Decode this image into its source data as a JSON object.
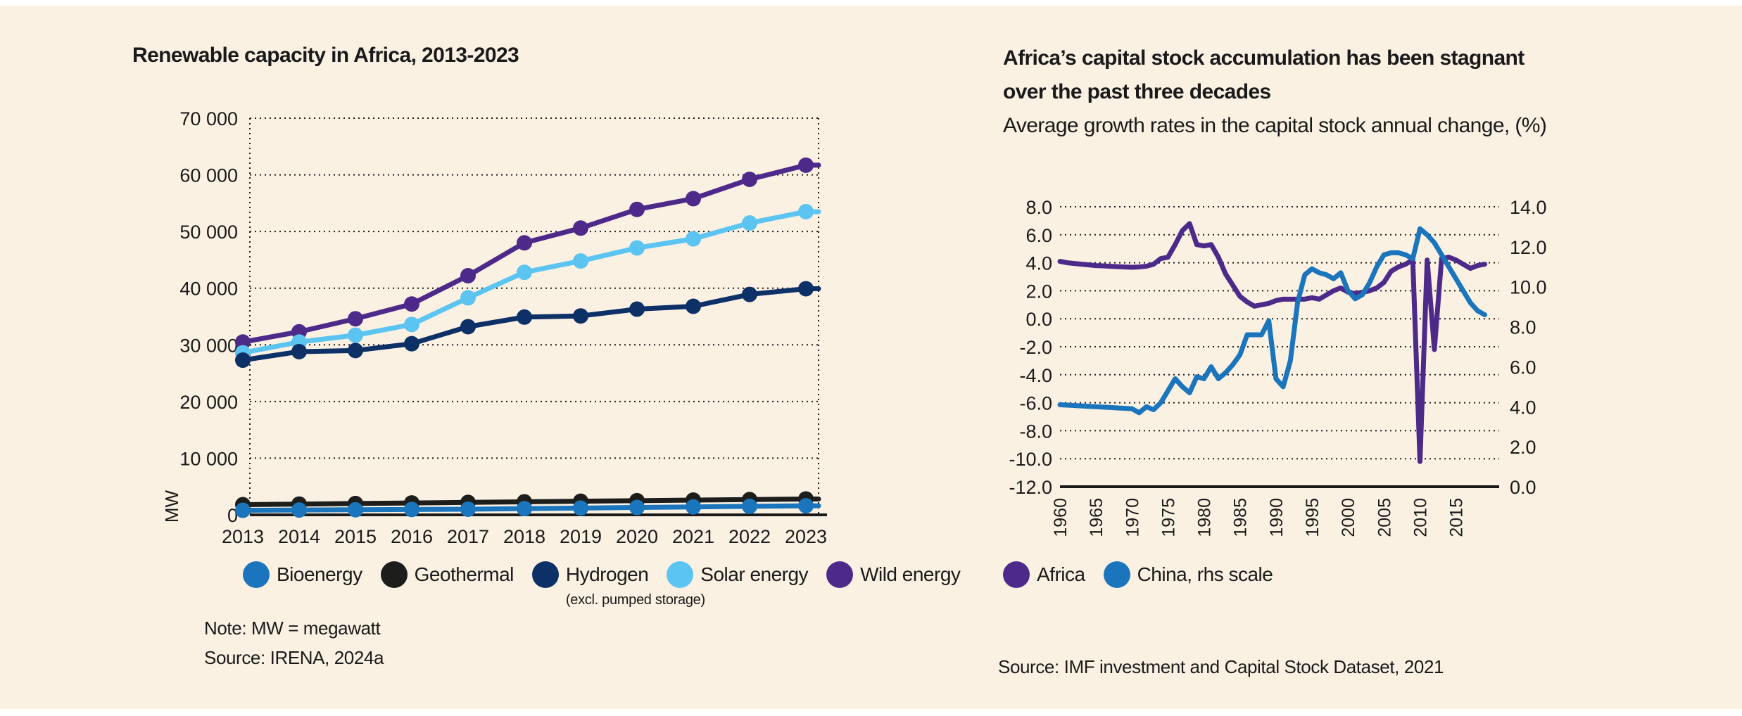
{
  "left_chart": {
    "title": "Renewable capacity in Africa, 2013-2023",
    "note": "Note: MW = megawatt",
    "source": "Source: IRENA, 2024a",
    "legend": [
      {
        "label": "Bioenergy",
        "color": "#1b75bc",
        "sublabel": ""
      },
      {
        "label": "Geothermal",
        "color": "#1d1d1b",
        "sublabel": ""
      },
      {
        "label": "Hydrogen",
        "color": "#0d3066",
        "sublabel": "(excl. pumped storage)"
      },
      {
        "label": "Solar energy",
        "color": "#5bc4f1",
        "sublabel": ""
      },
      {
        "label": "Wild energy",
        "color": "#4d2a8a",
        "sublabel": ""
      }
    ]
  },
  "right_chart": {
    "title_line1": "Africa’s capital stock accumulation has been stagnant",
    "title_line2": "over the past three decades",
    "subtitle": "Average growth rates in the capital stock annual change, (%)",
    "source": "Source: IMF investment and Capital Stock Dataset, 2021",
    "legend": [
      {
        "label": "Africa",
        "color": "#4d2a8a"
      },
      {
        "label": "China, rhs scale",
        "color": "#1b75bc"
      }
    ]
  },
  "chart_data": [
    {
      "type": "line",
      "title": "Renewable capacity in Africa, 2013-2023",
      "xlabel": "",
      "ylabel": "MW",
      "ylim": [
        0,
        70000
      ],
      "yticks": [
        0,
        10000,
        20000,
        30000,
        40000,
        50000,
        60000,
        70000
      ],
      "ytick_labels": [
        "0",
        "10 000",
        "20 000",
        "30 000",
        "40 000",
        "50 000",
        "60 000",
        "70 000"
      ],
      "x": [
        2013,
        2014,
        2015,
        2016,
        2017,
        2018,
        2019,
        2020,
        2021,
        2022,
        2023
      ],
      "grid": true,
      "series": [
        {
          "name": "Wild energy",
          "color": "#4d2a8a",
          "values": [
            30500,
            32300,
            34600,
            37200,
            42200,
            48000,
            50600,
            53900,
            55800,
            59200,
            61700
          ]
        },
        {
          "name": "Solar energy",
          "color": "#5bc4f1",
          "values": [
            28600,
            30500,
            31700,
            33600,
            38300,
            42800,
            44800,
            47100,
            48700,
            51500,
            53500
          ]
        },
        {
          "name": "Hydrogen",
          "color": "#0d3066",
          "values": [
            27300,
            28800,
            29000,
            30200,
            33200,
            34900,
            35100,
            36300,
            36800,
            38900,
            39900
          ]
        },
        {
          "name": "Geothermal",
          "color": "#1d1d1b",
          "values": [
            1800,
            1900,
            2000,
            2100,
            2200,
            2300,
            2400,
            2500,
            2600,
            2700,
            2800
          ]
        },
        {
          "name": "Bioenergy",
          "color": "#1b75bc",
          "values": [
            800,
            850,
            900,
            950,
            1000,
            1100,
            1200,
            1300,
            1400,
            1500,
            1600
          ]
        }
      ]
    },
    {
      "type": "line",
      "title": "Africa’s capital stock accumulation has been stagnant over the past three decades",
      "subtitle": "Average growth rates in the capital stock annual change, (%)",
      "ylim": [
        -12,
        8
      ],
      "yticks": [
        -12,
        -10,
        -8,
        -6,
        -4,
        -2,
        0,
        2,
        4,
        6,
        8
      ],
      "ytick_labels": [
        "-12.0",
        "-10.0",
        "-8.0",
        "-6.0",
        "-4.0",
        "-2.0",
        "0.0",
        "2.0",
        "4.0",
        "6.0",
        "8.0"
      ],
      "y2lim": [
        0,
        14
      ],
      "y2ticks": [
        0,
        2,
        4,
        6,
        8,
        10,
        12,
        14
      ],
      "y2tick_labels": [
        "0.0",
        "2.0",
        "4.0",
        "6.0",
        "8.0",
        "10.0",
        "12.0",
        "14.0"
      ],
      "xticks": [
        1960,
        1965,
        1970,
        1975,
        1980,
        1985,
        1990,
        1995,
        2000,
        2005,
        2010,
        2015
      ],
      "grid": true,
      "series": [
        {
          "name": "Africa",
          "axis": "left",
          "color": "#4d2a8a",
          "x": [
            1960,
            1961,
            1962,
            1963,
            1964,
            1965,
            1966,
            1967,
            1968,
            1969,
            1970,
            1971,
            1972,
            1973,
            1974,
            1975,
            1976,
            1977,
            1978,
            1979,
            1980,
            1981,
            1982,
            1983,
            1984,
            1985,
            1986,
            1987,
            1988,
            1989,
            1990,
            1991,
            1992,
            1993,
            1994,
            1995,
            1996,
            1997,
            1998,
            1999,
            2000,
            2001,
            2002,
            2003,
            2004,
            2005,
            2006,
            2007,
            2008,
            2009,
            2010,
            2011,
            2012,
            2013,
            2014,
            2015,
            2016,
            2017,
            2018,
            2019
          ],
          "values": [
            4.1,
            4.0,
            3.95,
            3.9,
            3.85,
            3.8,
            3.78,
            3.75,
            3.72,
            3.7,
            3.68,
            3.7,
            3.75,
            3.9,
            4.3,
            4.4,
            5.3,
            6.3,
            6.8,
            5.3,
            5.2,
            5.3,
            4.4,
            3.2,
            2.4,
            1.6,
            1.2,
            0.9,
            1.0,
            1.1,
            1.3,
            1.4,
            1.4,
            1.4,
            1.4,
            1.5,
            1.4,
            1.7,
            2.0,
            2.2,
            1.9,
            1.8,
            1.9,
            2.0,
            2.2,
            2.6,
            3.4,
            3.7,
            3.9,
            4.2,
            -10.2,
            4.2,
            -2.2,
            4.3,
            4.4,
            4.2,
            3.9,
            3.6,
            3.8,
            3.9
          ]
        },
        {
          "name": "China, rhs scale",
          "axis": "right",
          "color": "#1b75bc",
          "x": [
            1960,
            1961,
            1962,
            1963,
            1964,
            1965,
            1966,
            1967,
            1968,
            1969,
            1970,
            1971,
            1972,
            1973,
            1974,
            1975,
            1976,
            1977,
            1978,
            1979,
            1980,
            1981,
            1982,
            1983,
            1984,
            1985,
            1986,
            1987,
            1988,
            1989,
            1990,
            1991,
            1992,
            1993,
            1994,
            1995,
            1996,
            1997,
            1998,
            1999,
            2000,
            2001,
            2002,
            2003,
            2004,
            2005,
            2006,
            2007,
            2008,
            2009,
            2010,
            2011,
            2012,
            2013,
            2014,
            2015,
            2016,
            2017,
            2018,
            2019
          ],
          "values": [
            4.1,
            4.08,
            4.06,
            4.04,
            4.02,
            4.0,
            3.98,
            3.96,
            3.94,
            3.92,
            3.9,
            3.7,
            4.0,
            3.85,
            4.2,
            4.8,
            5.4,
            5.0,
            4.7,
            5.5,
            5.4,
            6.0,
            5.4,
            5.7,
            6.1,
            6.6,
            7.6,
            7.6,
            7.6,
            8.3,
            5.4,
            5.0,
            6.3,
            9.2,
            10.6,
            10.9,
            10.7,
            10.6,
            10.4,
            10.7,
            9.8,
            9.4,
            9.6,
            10.2,
            11.0,
            11.6,
            11.7,
            11.7,
            11.6,
            11.4,
            12.9,
            12.6,
            12.2,
            11.6,
            11.0,
            10.4,
            9.8,
            9.2,
            8.8,
            8.6
          ]
        }
      ]
    }
  ]
}
